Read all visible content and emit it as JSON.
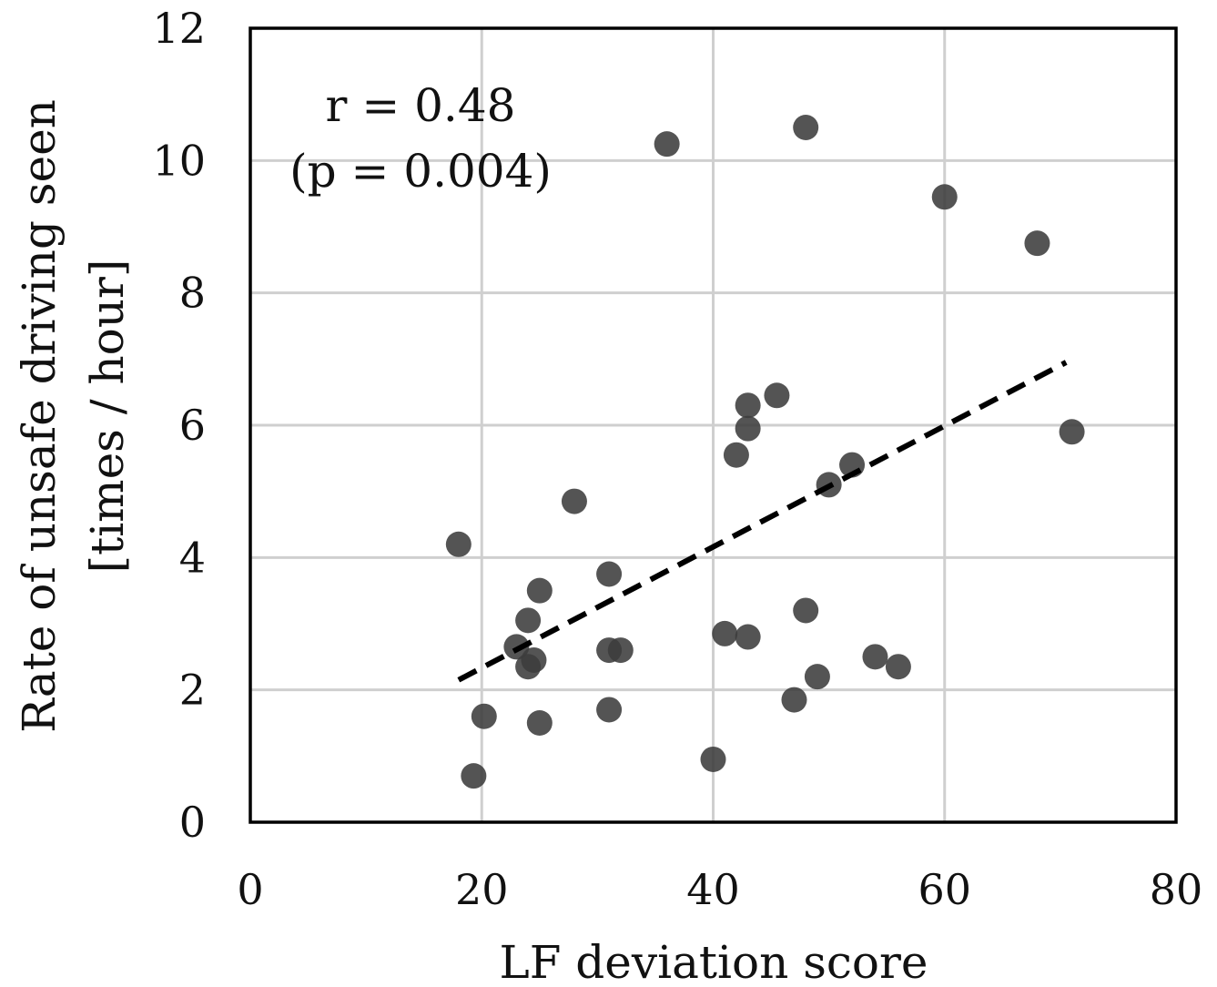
{
  "chart_data": {
    "type": "scatter",
    "title": "",
    "xlabel": "LF deviation score",
    "ylabel_line1": "Rate of unsafe driving seen",
    "ylabel_line2": "[times / hour]",
    "xlim": [
      0,
      80
    ],
    "ylim": [
      0,
      12
    ],
    "x_ticks": [
      0,
      20,
      40,
      60,
      80
    ],
    "y_ticks": [
      0,
      2,
      4,
      6,
      8,
      10,
      12
    ],
    "grid": true,
    "annotation_line1": "r = 0.48",
    "annotation_line2": "(p = 0.004)",
    "points": [
      {
        "x": 18,
        "y": 4.2
      },
      {
        "x": 19.3,
        "y": 0.7
      },
      {
        "x": 20.2,
        "y": 1.6
      },
      {
        "x": 23,
        "y": 2.65
      },
      {
        "x": 24,
        "y": 2.35
      },
      {
        "x": 24,
        "y": 3.05
      },
      {
        "x": 24.5,
        "y": 2.45
      },
      {
        "x": 25,
        "y": 3.5
      },
      {
        "x": 25,
        "y": 1.5
      },
      {
        "x": 28,
        "y": 4.85
      },
      {
        "x": 31,
        "y": 3.75
      },
      {
        "x": 31,
        "y": 2.6
      },
      {
        "x": 31,
        "y": 1.7
      },
      {
        "x": 32,
        "y": 2.6
      },
      {
        "x": 36,
        "y": 10.25
      },
      {
        "x": 40,
        "y": 0.95
      },
      {
        "x": 41,
        "y": 2.85
      },
      {
        "x": 42,
        "y": 5.55
      },
      {
        "x": 43,
        "y": 6.3
      },
      {
        "x": 43,
        "y": 5.95
      },
      {
        "x": 43,
        "y": 2.8
      },
      {
        "x": 45.5,
        "y": 6.45
      },
      {
        "x": 47,
        "y": 1.85
      },
      {
        "x": 48,
        "y": 10.5
      },
      {
        "x": 48,
        "y": 3.2
      },
      {
        "x": 49,
        "y": 2.2
      },
      {
        "x": 50,
        "y": 5.1
      },
      {
        "x": 52,
        "y": 5.4
      },
      {
        "x": 54,
        "y": 2.5
      },
      {
        "x": 56,
        "y": 2.35
      },
      {
        "x": 60,
        "y": 9.45
      },
      {
        "x": 68,
        "y": 8.75
      },
      {
        "x": 71,
        "y": 5.9
      }
    ],
    "trendline": {
      "x": [
        18,
        70.5
      ],
      "y": [
        2.15,
        6.95
      ]
    }
  }
}
